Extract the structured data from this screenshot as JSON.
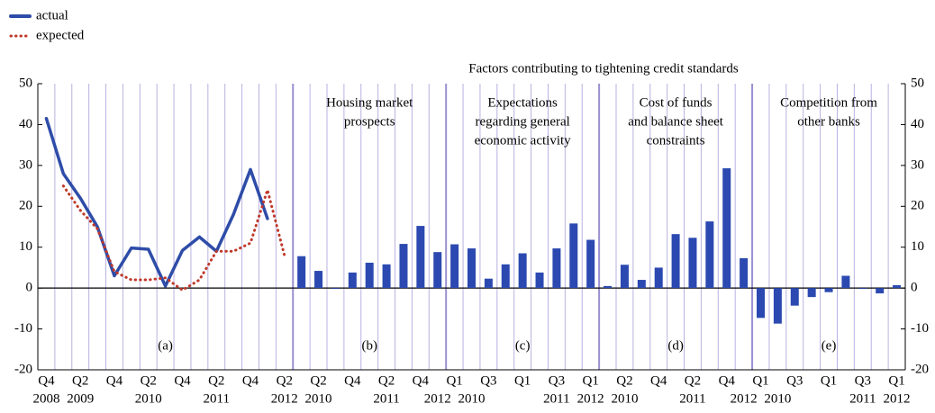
{
  "heading": "Factors contributing to tightening credit standards",
  "chart_data": [
    {
      "type": "line",
      "label": "(a)",
      "categories": [
        "Q4",
        null,
        "Q2",
        null,
        "Q4",
        null,
        "Q2",
        null,
        "Q4",
        null,
        "Q2",
        null,
        "Q4",
        null,
        "Q2"
      ],
      "years": [
        "2008",
        null,
        "2009",
        null,
        null,
        null,
        "2010",
        null,
        null,
        null,
        "2011",
        null,
        null,
        null,
        "2012"
      ],
      "series": [
        {
          "name": "actual",
          "color": "#2e4ca8",
          "style": "solid",
          "values": [
            41.5,
            28,
            22,
            15,
            3,
            9.8,
            9.5,
            0.5,
            9.2,
            12.5,
            9,
            18,
            29,
            17,
            null
          ]
        },
        {
          "name": "expected",
          "color": "#c0392b",
          "style": "dotted",
          "values": [
            null,
            25,
            19,
            14.5,
            4,
            2,
            2,
            2.5,
            -0.5,
            2,
            9,
            9,
            11,
            24,
            8
          ]
        }
      ],
      "ylim": [
        -20,
        50
      ],
      "yticks": [
        -20,
        -10,
        0,
        10,
        20,
        30,
        40,
        50
      ],
      "y2lim": [
        -20,
        50
      ],
      "y2ticks": [
        -20,
        -10,
        0,
        10,
        20,
        30,
        40,
        50
      ]
    },
    {
      "type": "bar",
      "title": [
        "Housing market",
        "prospects"
      ],
      "label": "(b)",
      "color": "#2b49b0",
      "categories": [
        null,
        "Q2",
        null,
        "Q4",
        null,
        "Q2",
        null,
        "Q4",
        null
      ],
      "years": [
        null,
        "2010",
        null,
        null,
        null,
        "2011",
        null,
        null,
        "2012"
      ],
      "values": [
        7.8,
        4.2,
        -0.2,
        3.8,
        6.2,
        5.8,
        10.8,
        15.2,
        8.8
      ]
    },
    {
      "type": "bar",
      "title": [
        "Expectations",
        "regarding general",
        "economic activity"
      ],
      "label": "(c)",
      "color": "#2b49b0",
      "categories": [
        "Q1",
        null,
        "Q3",
        null,
        "Q1",
        null,
        "Q3",
        null,
        "Q1"
      ],
      "years": [
        null,
        "2010",
        null,
        null,
        null,
        null,
        "2011",
        null,
        "2012"
      ],
      "values": [
        10.7,
        9.7,
        2.3,
        5.8,
        8.5,
        3.8,
        9.7,
        15.8,
        11.8
      ]
    },
    {
      "type": "bar",
      "title": [
        "Cost of funds",
        "and balance sheet",
        "constraints"
      ],
      "label": "(d)",
      "color": "#2b49b0",
      "categories": [
        null,
        "Q2",
        null,
        "Q4",
        null,
        "Q2",
        null,
        "Q4",
        null
      ],
      "years": [
        null,
        "2010",
        null,
        null,
        null,
        "2011",
        null,
        null,
        "2012"
      ],
      "values": [
        0.5,
        5.7,
        2.0,
        5.0,
        13.2,
        12.3,
        16.3,
        29.3,
        7.3
      ]
    },
    {
      "type": "bar",
      "title": [
        "Competition from",
        "other banks"
      ],
      "label": "(e)",
      "color": "#2b49b0",
      "categories": [
        "Q1",
        null,
        "Q3",
        null,
        "Q1",
        null,
        "Q3",
        null,
        "Q1"
      ],
      "years": [
        null,
        "2010",
        null,
        null,
        null,
        null,
        "2011",
        null,
        "2012"
      ],
      "values": [
        -7.3,
        -8.7,
        -4.3,
        -2.2,
        -1.0,
        3.0,
        -0.2,
        -1.3,
        0.7
      ]
    }
  ]
}
